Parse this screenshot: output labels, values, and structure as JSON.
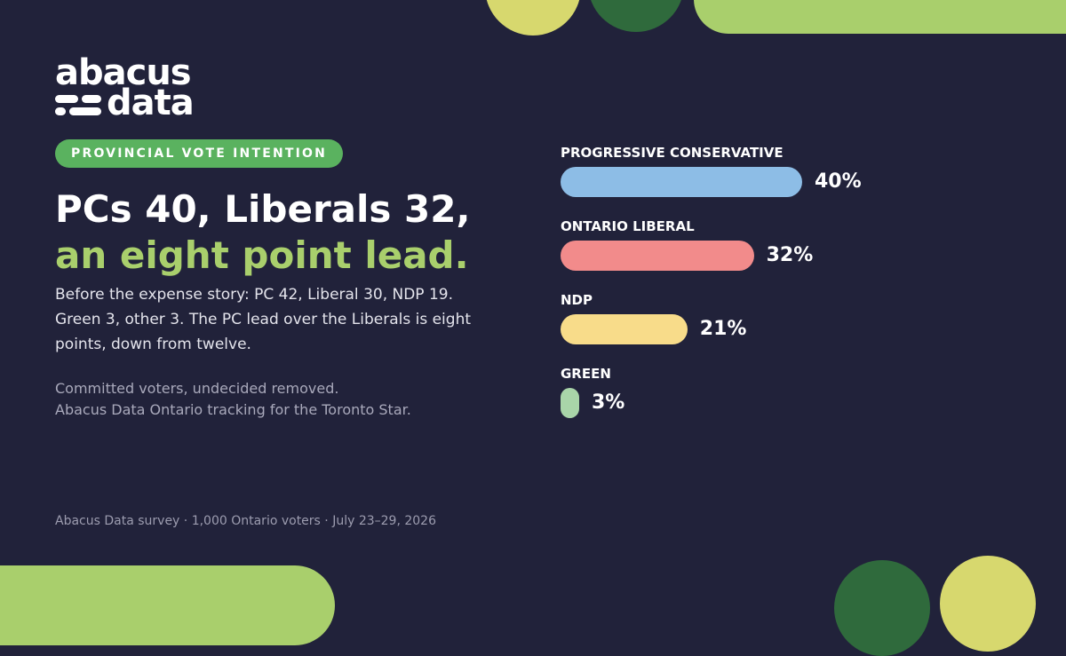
{
  "brand": {
    "logo_line1": "abacus",
    "logo_line2": "data"
  },
  "tag": "PROVINCIAL VOTE INTENTION",
  "headline": {
    "line1": "PCs 40, Liberals 32,",
    "line2": "an eight point lead."
  },
  "body": "Before the expense story: PC 42, Liberal 30, NDP 19. Green 3, other 3. The PC lead over the Liberals is eight points, down from twelve.",
  "note": {
    "line1": "Committed voters, undecided removed.",
    "line2": "Abacus Data Ontario tracking for the Toronto Star."
  },
  "source": "Abacus Data survey · 1,000 Ontario voters · July 23–29, 2026",
  "colors": {
    "background": "#21223a",
    "accent_green": "#a9cf6c",
    "pill_green": "#5ab25f",
    "dark_green": "#2f6a3c",
    "yellow_green": "#d7d86e"
  },
  "chart_data": {
    "type": "bar",
    "orientation": "horizontal",
    "title": "",
    "xlabel": "",
    "ylabel": "",
    "xlim": [
      0,
      100
    ],
    "unit": "%",
    "categories": [
      "PROGRESSIVE CONSERVATIVE",
      "ONTARIO LIBERAL",
      "NDP",
      "GREEN"
    ],
    "values": [
      40,
      32,
      21,
      3
    ],
    "value_labels": [
      "40%",
      "32%",
      "21%",
      "3%"
    ],
    "colors": [
      "#8dbde6",
      "#f28b8b",
      "#f8dc8a",
      "#a9d5a9"
    ],
    "grid": false
  }
}
